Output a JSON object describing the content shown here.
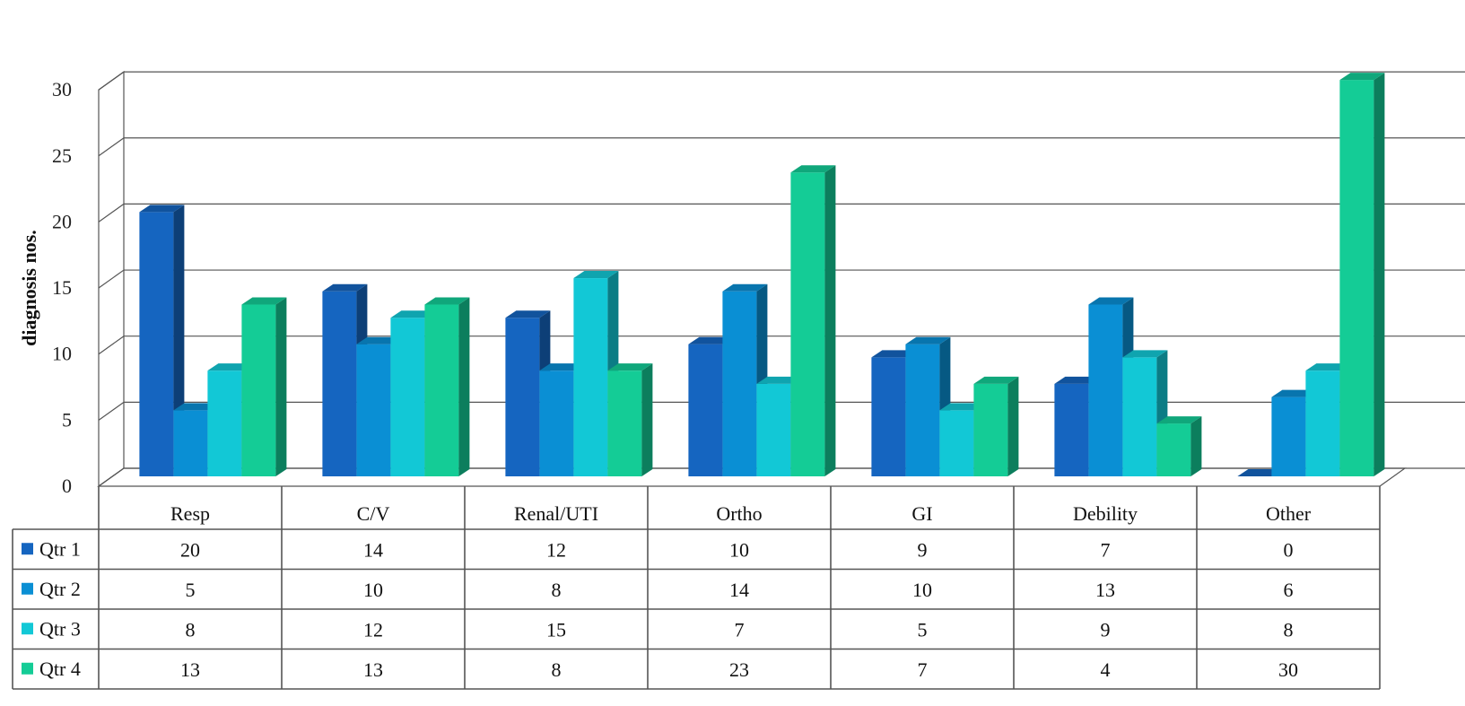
{
  "chart_data": {
    "type": "bar",
    "ylabel": "diagnosis nos.",
    "xlabel": "",
    "ylim": [
      0,
      30
    ],
    "yticks": [
      "0",
      "5",
      "10",
      "15",
      "20",
      "25",
      "30"
    ],
    "grid": true,
    "legend": "data-table-left",
    "categories": [
      "Resp",
      "C/V",
      "Renal/UTI",
      "Ortho",
      "GI",
      "Debility",
      "Other"
    ],
    "series": [
      {
        "name": "Qtr 1",
        "color": "#1565c0",
        "values": [
          20,
          14,
          12,
          10,
          9,
          7,
          0
        ]
      },
      {
        "name": "Qtr 2",
        "color": "#0a8fd4",
        "values": [
          5,
          10,
          8,
          14,
          10,
          13,
          6
        ]
      },
      {
        "name": "Qtr 3",
        "color": "#12c8d6",
        "values": [
          8,
          12,
          15,
          7,
          5,
          9,
          8
        ]
      },
      {
        "name": "Qtr 4",
        "color": "#14cc96",
        "values": [
          13,
          13,
          8,
          23,
          7,
          4,
          30
        ]
      }
    ]
  }
}
